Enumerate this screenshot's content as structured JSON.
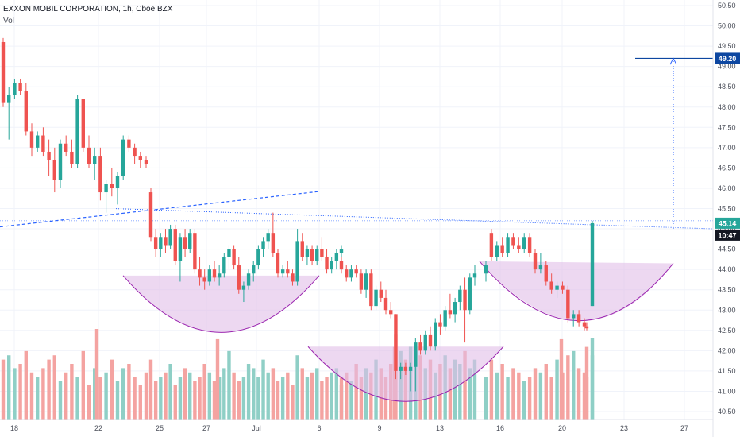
{
  "header": {
    "title": "EXXON MOBIL CORPORATION, 1h, Cboe BZX",
    "volume_label": "Vol"
  },
  "colors": {
    "up": "#26a69a",
    "down": "#ef5350",
    "up_vol": "#8fcfc6",
    "down_vol": "#f4a3a1",
    "pattern_fill": "#e1bee7",
    "pattern_stroke": "#9c27b0",
    "trend_line": "#2962ff",
    "target_tag": "#0d47a1",
    "price_tag": "#26a69a",
    "time_tag": "#131722"
  },
  "price_tag": {
    "value": "45.14",
    "countdown": "10:47"
  },
  "target_tag": {
    "value": "49.20"
  },
  "chart_data": {
    "type": "candlestick",
    "symbol": "EXXON MOBIL CORPORATION",
    "interval": "1h",
    "exchange": "Cboe BZX",
    "ylim": [
      40.4,
      50.6
    ],
    "y_ticks": [
      "40.50",
      "41.00",
      "41.50",
      "42.00",
      "42.50",
      "43.00",
      "43.50",
      "44.00",
      "44.50",
      "45.00",
      "45.50",
      "46.00",
      "46.50",
      "47.00",
      "47.50",
      "48.00",
      "48.50",
      "49.00",
      "49.50",
      "50.00",
      "50.50"
    ],
    "x_ticks": [
      "18",
      "22",
      "25",
      "27",
      "Jul",
      "6",
      "9",
      "13",
      "16",
      "20",
      "23",
      "27"
    ],
    "last_price": 45.14,
    "target_price": 49.2,
    "candles": [
      [
        49.6,
        49.7,
        48.0,
        48.1
      ],
      [
        48.1,
        48.5,
        47.2,
        48.3
      ],
      [
        48.3,
        48.7,
        48.2,
        48.6
      ],
      [
        48.6,
        48.7,
        48.3,
        48.4
      ],
      [
        48.4,
        48.6,
        47.3,
        47.4
      ],
      [
        47.4,
        47.6,
        46.8,
        47.0
      ],
      [
        47.0,
        47.4,
        46.9,
        47.3
      ],
      [
        47.3,
        47.5,
        46.8,
        46.9
      ],
      [
        46.9,
        47.2,
        46.3,
        46.7
      ],
      [
        46.7,
        47.0,
        45.9,
        46.2
      ],
      [
        46.2,
        47.2,
        46.0,
        47.1
      ],
      [
        47.1,
        47.3,
        46.8,
        46.9
      ],
      [
        46.9,
        47.2,
        46.5,
        46.6
      ],
      [
        46.6,
        48.3,
        46.5,
        48.2
      ],
      [
        48.2,
        48.2,
        46.9,
        47.0
      ],
      [
        47.0,
        47.3,
        46.5,
        46.6
      ],
      [
        46.6,
        47.0,
        46.2,
        46.8
      ],
      [
        46.8,
        47.0,
        45.7,
        45.9
      ],
      [
        45.9,
        46.2,
        45.4,
        46.1
      ],
      [
        46.1,
        46.5,
        45.8,
        46.0
      ],
      [
        46.0,
        46.4,
        45.6,
        46.3
      ],
      [
        46.3,
        47.3,
        46.2,
        47.2
      ],
      [
        47.2,
        47.3,
        46.9,
        47.0
      ],
      [
        47.0,
        47.1,
        46.6,
        46.8
      ],
      [
        46.8,
        46.9,
        46.5,
        46.7
      ],
      [
        46.7,
        46.8,
        46.5,
        46.6
      ],
      [
        45.9,
        46.0,
        44.7,
        44.8
      ],
      [
        44.8,
        45.0,
        44.3,
        44.5
      ],
      [
        44.5,
        44.9,
        44.3,
        44.8
      ],
      [
        44.8,
        45.0,
        44.4,
        44.6
      ],
      [
        44.6,
        45.1,
        44.5,
        45.0
      ],
      [
        45.0,
        45.1,
        44.1,
        44.2
      ],
      [
        44.2,
        44.9,
        43.7,
        44.8
      ],
      [
        44.8,
        45.0,
        44.3,
        44.5
      ],
      [
        44.5,
        45.0,
        44.4,
        44.9
      ],
      [
        44.9,
        45.0,
        43.9,
        44.0
      ],
      [
        44.0,
        44.3,
        43.6,
        43.8
      ],
      [
        43.8,
        44.0,
        43.5,
        43.7
      ],
      [
        43.7,
        44.1,
        43.6,
        44.0
      ],
      [
        44.0,
        44.2,
        43.7,
        43.8
      ],
      [
        43.8,
        44.1,
        43.6,
        43.9
      ],
      [
        43.9,
        44.4,
        43.8,
        44.3
      ],
      [
        44.3,
        44.6,
        44.0,
        44.5
      ],
      [
        44.5,
        44.6,
        44.0,
        44.1
      ],
      [
        44.1,
        44.3,
        43.4,
        43.5
      ],
      [
        43.5,
        43.7,
        43.2,
        43.6
      ],
      [
        43.6,
        44.0,
        43.5,
        43.9
      ],
      [
        43.9,
        44.2,
        43.7,
        44.1
      ],
      [
        44.1,
        44.6,
        44.0,
        44.5
      ],
      [
        44.5,
        44.8,
        44.3,
        44.7
      ],
      [
        44.7,
        45.0,
        44.5,
        44.9
      ],
      [
        44.9,
        45.4,
        44.3,
        44.4
      ],
      [
        44.4,
        44.5,
        43.8,
        43.9
      ],
      [
        43.9,
        44.1,
        43.8,
        44.0
      ],
      [
        44.0,
        44.2,
        43.8,
        43.9
      ],
      [
        43.9,
        44.0,
        43.6,
        43.7
      ],
      [
        43.7,
        45.0,
        43.6,
        44.7
      ],
      [
        44.7,
        44.9,
        44.2,
        44.3
      ],
      [
        44.3,
        44.6,
        44.1,
        44.5
      ],
      [
        44.5,
        44.6,
        44.1,
        44.2
      ],
      [
        44.2,
        44.6,
        44.1,
        44.5
      ],
      [
        44.5,
        44.8,
        44.2,
        44.3
      ],
      [
        44.3,
        44.5,
        43.9,
        44.0
      ],
      [
        44.0,
        44.3,
        43.9,
        44.2
      ],
      [
        44.2,
        44.5,
        44.0,
        44.4
      ],
      [
        44.4,
        44.6,
        44.2,
        44.5
      ],
      [
        44.2,
        44.3,
        43.9,
        44.0
      ],
      [
        44.0,
        44.1,
        43.7,
        43.8
      ],
      [
        43.8,
        44.1,
        43.7,
        44.0
      ],
      [
        44.0,
        44.1,
        43.8,
        43.9
      ],
      [
        43.9,
        44.0,
        43.4,
        43.5
      ],
      [
        43.5,
        44.0,
        43.3,
        43.9
      ],
      [
        43.9,
        44.0,
        43.0,
        43.1
      ],
      [
        43.1,
        43.6,
        43.0,
        43.5
      ],
      [
        43.5,
        43.7,
        43.2,
        43.3
      ],
      [
        43.3,
        43.5,
        42.9,
        43.0
      ],
      [
        43.0,
        43.2,
        42.8,
        42.9
      ],
      [
        42.9,
        42.9,
        41.3,
        41.5
      ],
      [
        41.5,
        41.7,
        41.3,
        41.6
      ],
      [
        41.6,
        41.7,
        41.4,
        41.5
      ],
      [
        41.5,
        41.7,
        41.0,
        41.6
      ],
      [
        41.6,
        42.3,
        41.0,
        42.2
      ],
      [
        42.2,
        42.4,
        41.9,
        42.0
      ],
      [
        42.0,
        42.5,
        41.9,
        42.4
      ],
      [
        42.4,
        42.6,
        42.0,
        42.1
      ],
      [
        42.1,
        42.8,
        42.0,
        42.7
      ],
      [
        42.7,
        42.9,
        42.4,
        42.6
      ],
      [
        42.6,
        43.1,
        42.5,
        43.0
      ],
      [
        43.0,
        43.4,
        42.8,
        42.9
      ],
      [
        42.9,
        43.3,
        42.7,
        43.2
      ],
      [
        43.2,
        43.6,
        43.0,
        43.5
      ],
      [
        43.5,
        43.8,
        42.2,
        43.0
      ],
      [
        43.0,
        43.9,
        42.9,
        43.8
      ],
      [
        43.8,
        44.1,
        43.6,
        43.9
      ],
      [
        43.9,
        44.2,
        43.7,
        44.1
      ],
      [
        44.9,
        45.0,
        44.2,
        44.3
      ],
      [
        44.3,
        44.7,
        44.2,
        44.6
      ],
      [
        44.6,
        44.8,
        44.3,
        44.4
      ],
      [
        44.4,
        44.9,
        44.3,
        44.8
      ],
      [
        44.8,
        44.9,
        44.5,
        44.6
      ],
      [
        44.6,
        44.8,
        44.4,
        44.5
      ],
      [
        44.5,
        44.9,
        44.4,
        44.8
      ],
      [
        44.8,
        44.9,
        44.3,
        44.4
      ],
      [
        44.4,
        44.5,
        43.9,
        44.0
      ],
      [
        44.0,
        44.4,
        43.9,
        44.1
      ],
      [
        44.1,
        44.2,
        43.6,
        43.7
      ],
      [
        43.7,
        43.9,
        43.4,
        43.5
      ],
      [
        43.5,
        43.7,
        43.3,
        43.6
      ],
      [
        43.6,
        43.7,
        43.4,
        43.5
      ],
      [
        43.5,
        43.6,
        42.7,
        42.8
      ],
      [
        42.8,
        43.0,
        42.6,
        42.9
      ],
      [
        42.9,
        43.0,
        42.6,
        42.7
      ],
      [
        42.7,
        42.8,
        42.5,
        42.6
      ],
      [
        42.6,
        42.7,
        42.5,
        42.55
      ],
      [
        43.1,
        44.6,
        43.1,
        44.5
      ],
      [
        44.5,
        45.2,
        44.5,
        45.14
      ]
    ],
    "volume_max": 2.6,
    "volume": [
      1.4,
      1.5,
      1.2,
      1.3,
      1.6,
      1.1,
      1.0,
      1.2,
      1.4,
      1.5,
      0.9,
      1.1,
      1.3,
      1.0,
      1.6,
      0.8,
      1.2,
      1.0,
      1.1,
      1.4,
      0.9,
      1.2,
      1.3,
      1.0,
      0.8,
      1.1,
      1.4,
      0.9,
      1.0,
      1.1,
      1.3,
      0.8,
      1.0,
      1.2,
      1.1,
      0.9,
      1.0,
      1.3,
      1.1,
      0.9,
      1.0,
      1.2,
      1.6,
      1.1,
      0.9,
      1.0,
      1.3,
      1.2,
      1.0,
      1.4,
      1.1,
      1.2,
      0.9,
      1.0,
      1.1,
      0.8,
      1.5,
      1.2,
      1.0,
      1.1,
      1.2,
      0.9,
      1.0,
      1.1,
      1.2,
      0.8,
      1.0,
      1.1,
      0.9,
      1.3,
      1.0,
      1.2,
      1.1,
      1.4,
      1.2,
      1.0,
      1.3,
      2.0,
      1.6,
      1.4,
      1.7,
      1.3,
      1.5,
      1.2,
      1.4,
      1.1,
      1.3,
      1.5,
      1.2,
      1.4,
      1.3,
      1.6,
      1.2,
      1.4,
      1.0,
      1.4,
      1.1,
      1.3,
      1.0,
      1.2,
      1.1,
      0.9,
      1.0,
      1.2,
      1.1,
      1.3,
      1.0,
      1.4,
      1.1,
      1.5,
      1.6,
      1.2,
      1.1,
      1.0,
      1.5,
      1.9
    ]
  }
}
